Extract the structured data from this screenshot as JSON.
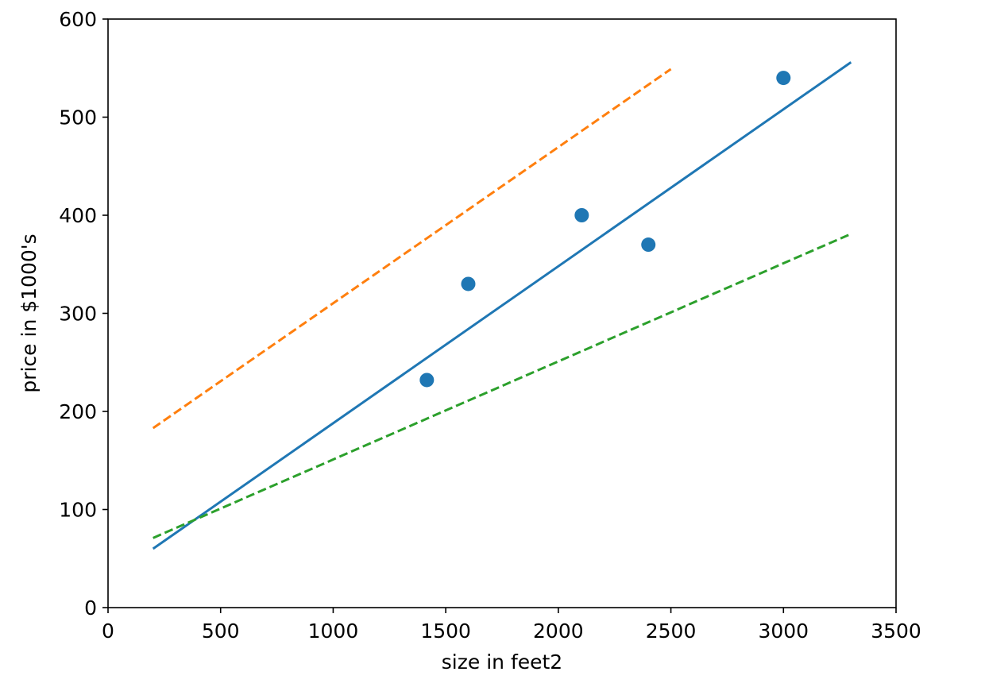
{
  "chart_data": {
    "type": "scatter",
    "title": "",
    "xlabel": "size in feet2",
    "ylabel": "price in $1000's",
    "xlim": [
      0,
      3500
    ],
    "ylim": [
      0,
      600
    ],
    "xticks": [
      0,
      500,
      1000,
      1500,
      2000,
      2500,
      3000,
      3500
    ],
    "yticks": [
      0,
      100,
      200,
      300,
      400,
      500,
      600
    ],
    "grid": false,
    "points": {
      "x": [
        1416,
        1600,
        2104,
        2400,
        3000
      ],
      "y": [
        232,
        330,
        400,
        370,
        540
      ],
      "color": "#1f77b4"
    },
    "lines": [
      {
        "style": "solid",
        "color": "#1f77b4",
        "x": [
          200,
          3300
        ],
        "y": [
          60,
          556
        ]
      },
      {
        "style": "dashed",
        "color": "#ff7f0e",
        "x": [
          200,
          2500
        ],
        "y": [
          183,
          549
        ]
      },
      {
        "style": "dashed",
        "color": "#2ca02c",
        "x": [
          200,
          3300
        ],
        "y": [
          71,
          381
        ]
      }
    ]
  }
}
